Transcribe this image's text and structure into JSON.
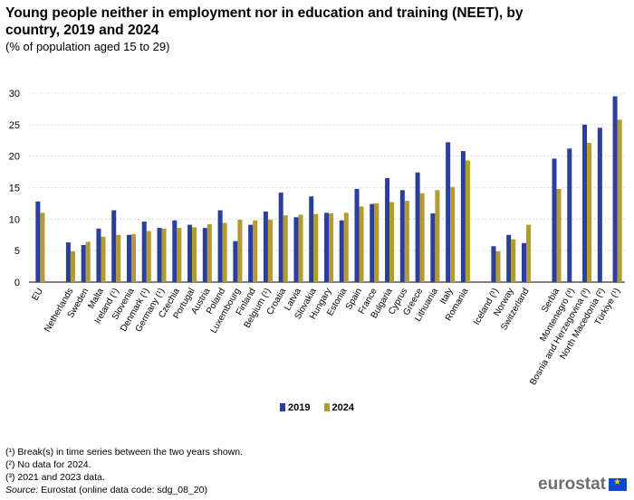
{
  "header": {
    "title": "Young people neither in employment nor in education and training (NEET), by country, 2019 and 2024",
    "subtitle": "(% of population aged 15 to 29)"
  },
  "colors": {
    "s2019": "#2a3f9c",
    "s2024": "#b39a32",
    "grid": "#d9d9d9"
  },
  "chart_data": {
    "type": "bar",
    "ylim": [
      0,
      30
    ],
    "yticks": [
      0,
      5,
      10,
      15,
      20,
      25,
      30
    ],
    "groups": [
      [
        "EU"
      ],
      [
        "Netherlands",
        "Sweden",
        "Malta",
        "Ireland (¹)",
        "Slovenia",
        "Denmark (¹)",
        "Germany (¹)",
        "Czechia",
        "Portugal",
        "Austria",
        "Poland",
        "Luxembourg",
        "Finland",
        "Belgium (¹)",
        "Croatia",
        "Latvia",
        "Slovakia",
        "Hungary",
        "Estonia",
        "Spain",
        "France",
        "Bulgaria",
        "Cyprus",
        "Greece",
        "Lithuania",
        "Italy",
        "Romania"
      ],
      [
        "Iceland (¹)",
        "Norway",
        "Switzerland"
      ],
      [
        "Serbia",
        "Montenegro (³)",
        "Bosnia and Herzegovina (³)",
        "North Macedonia (²)",
        "Türkiye (¹)"
      ]
    ],
    "categories": [
      "EU",
      "Netherlands",
      "Sweden",
      "Malta",
      "Ireland (¹)",
      "Slovenia",
      "Denmark (¹)",
      "Germany (¹)",
      "Czechia",
      "Portugal",
      "Austria",
      "Poland",
      "Luxembourg",
      "Finland",
      "Belgium (¹)",
      "Croatia",
      "Latvia",
      "Slovakia",
      "Hungary",
      "Estonia",
      "Spain",
      "France",
      "Bulgaria",
      "Cyprus",
      "Greece",
      "Lithuania",
      "Italy",
      "Romania",
      "Iceland (¹)",
      "Norway",
      "Switzerland",
      "Serbia",
      "Montenegro (³)",
      "Bosnia and Herzegovina (³)",
      "North Macedonia (²)",
      "Türkiye (¹)"
    ],
    "series": [
      {
        "name": "2019",
        "values": [
          12.8,
          6.3,
          5.9,
          8.5,
          11.4,
          7.5,
          9.6,
          8.6,
          9.8,
          9.1,
          8.6,
          11.4,
          6.5,
          9.1,
          11.2,
          14.2,
          10.3,
          13.6,
          11.0,
          9.8,
          14.8,
          12.4,
          16.5,
          14.6,
          17.4,
          10.9,
          22.2,
          20.8,
          5.7,
          7.5,
          6.2,
          19.6,
          21.2,
          25.0,
          24.5,
          29.5
        ]
      },
      {
        "name": "2024",
        "values": [
          11.0,
          4.9,
          6.4,
          7.2,
          7.5,
          7.6,
          8.1,
          8.5,
          8.6,
          8.7,
          9.2,
          9.4,
          9.9,
          9.8,
          9.9,
          10.6,
          10.7,
          10.8,
          10.9,
          11.0,
          12.0,
          12.5,
          12.7,
          12.9,
          14.1,
          14.6,
          15.1,
          19.3,
          4.9,
          6.8,
          9.1,
          14.8,
          null,
          22.1,
          null,
          25.8
        ]
      }
    ]
  },
  "legend": {
    "label_2019": "2019",
    "label_2024": "2024"
  },
  "notes": {
    "n1": "(¹) Break(s) in time series between the two years shown.",
    "n2": "(²) No data for 2024.",
    "n3": "(³) 2021 and 2023 data.",
    "source_label": "Source:",
    "source_text": " Eurostat (online data code: sdg_08_20)"
  },
  "logo": {
    "text": "eurostat"
  }
}
